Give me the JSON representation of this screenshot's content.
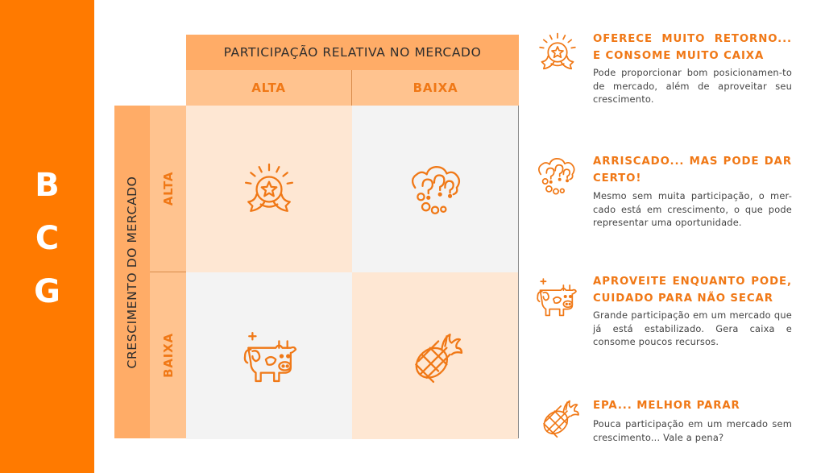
{
  "side_letters": [
    "B",
    "C",
    "G"
  ],
  "matrix": {
    "column_header": "PARTICIPAÇÃO RELATIVA NO MERCADO",
    "column_labels": [
      "ALTA",
      "BAIXA"
    ],
    "row_header": "CRESCIMENTO DO MERCADO",
    "row_labels": [
      "ALTA",
      "BAIXA"
    ],
    "quadrant_icons": [
      "star-badge",
      "question-cloud",
      "cow",
      "pineapple"
    ]
  },
  "descriptions": [
    {
      "icon": "star-badge",
      "title": "OFERECE MUITO RETORNO... E CONSOME MUITO CAIXA",
      "text": "Pode proporcionar bom posicionamen-to de mercado, além de aproveitar seu crescimento."
    },
    {
      "icon": "question-cloud",
      "title": "ARRISCADO... MAS PODE DAR CERTO!",
      "text": "Mesmo sem muita participação, o mer-cado está em crescimento, o que pode representar uma oportunidade."
    },
    {
      "icon": "cow",
      "title": "APROVEITE ENQUANTO PODE, CUIDADO PARA NÃO SECAR",
      "text": "Grande participação em um mercado que já está estabilizado. Gera caixa e consome poucos recursos."
    },
    {
      "icon": "pineapple",
      "title": "EPA... MELHOR PARAR",
      "text": "Pouca participação em um mercado sem crescimento... Vale a pena?"
    }
  ],
  "colors": {
    "brand_orange": "#ff7a00",
    "header_orange": "#ffac67",
    "sub_header_orange": "#ffc38f",
    "quadrant_light": "#fee7d3",
    "quadrant_grey": "#f3f3f3",
    "accent_text": "#f07816"
  }
}
